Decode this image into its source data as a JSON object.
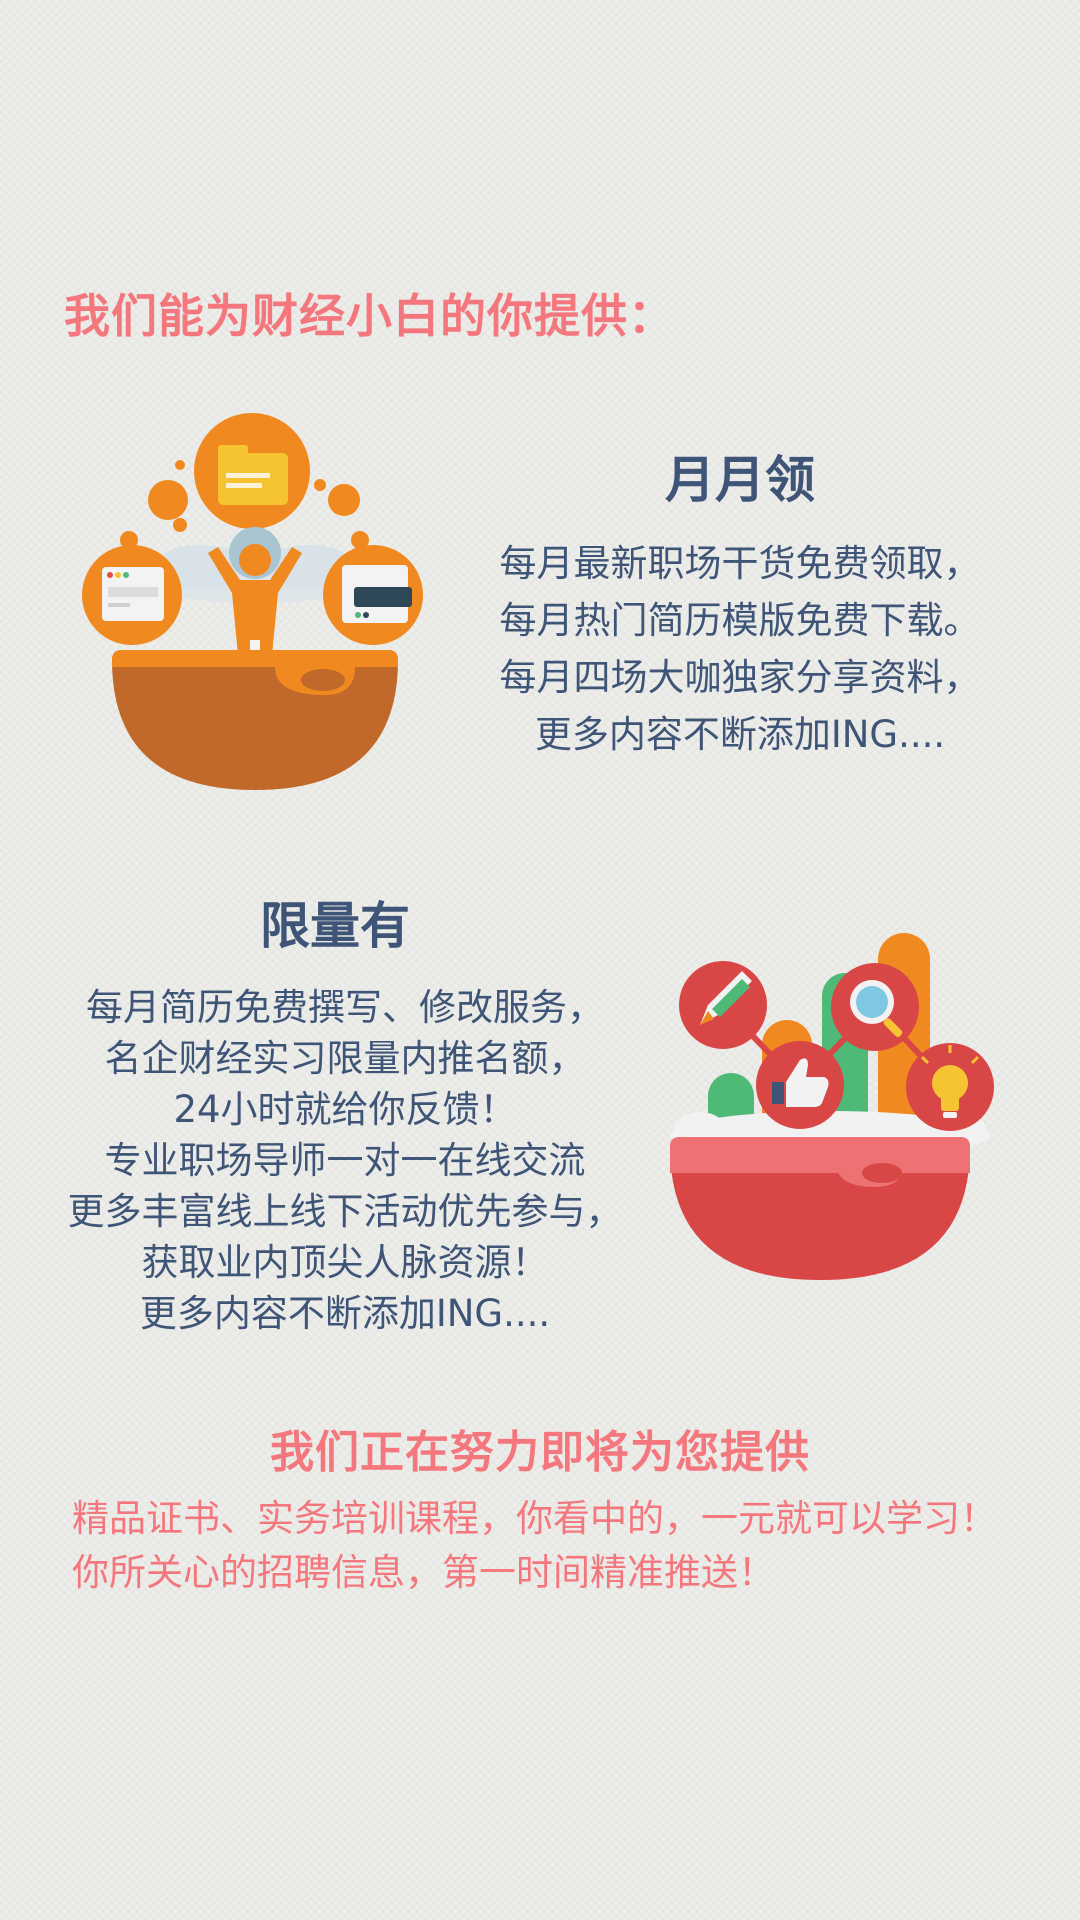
{
  "intro_heading": "我们能为财经小白的你提供：",
  "section1": {
    "title": "月月领",
    "lines": [
      "每月最新职场干货免费领取，",
      "每月热门简历模版免费下载。",
      "每月四场大咖独家分享资料，",
      "更多内容不断添加ING...."
    ]
  },
  "section2": {
    "title": "限量有",
    "lines": [
      "每月简历免费撰写、修改服务，",
      "名企财经实习限量内推名额，",
      "24小时就给你反馈！",
      "专业职场导师一对一在线交流",
      "更多丰富线上线下活动优先参与，",
      "获取业内顶尖人脉资源！",
      "更多内容不断添加ING...."
    ]
  },
  "upcoming": {
    "heading": "我们正在努力即将为您提供",
    "lines": [
      "精品证书、实务培训课程，你看中的，一元就可以学习！",
      "你所关心的招聘信息，第一时间精准推送！"
    ]
  },
  "colors": {
    "pink": "#f4777d",
    "navy": "#3f5577",
    "orange": "#f0891f",
    "red": "#d94646",
    "green": "#4fb978"
  },
  "icons": {
    "illustration1": "person-with-folders-icon",
    "illustration2": "growth-bars-with-badges-icon"
  }
}
